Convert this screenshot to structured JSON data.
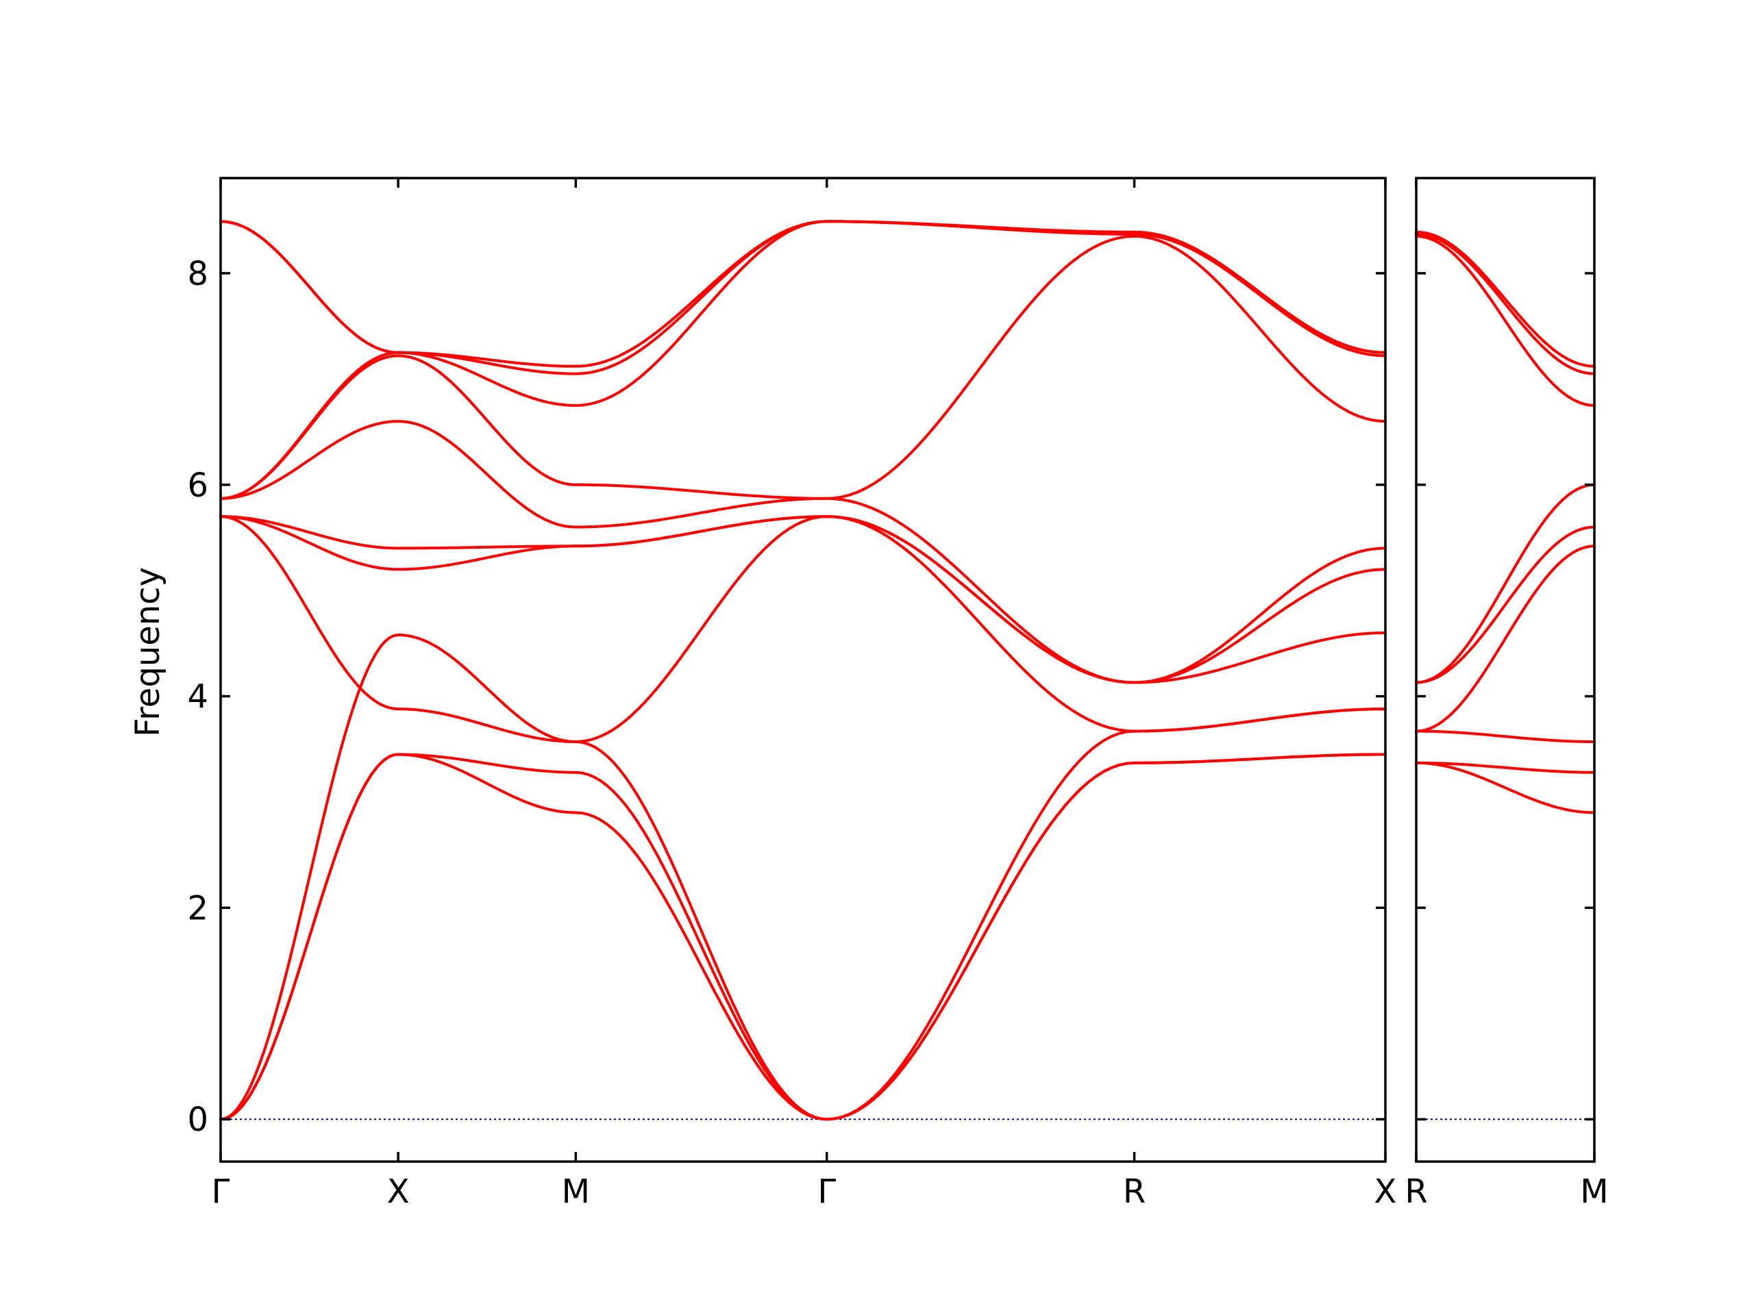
{
  "chart_data": {
    "type": "line",
    "ylabel": "Frequency",
    "ylim": [
      -0.4,
      8.9
    ],
    "yticks": [
      0,
      2,
      4,
      6,
      8
    ],
    "band_color": "#ff0000",
    "zero_line_color": "#0000aa",
    "panels": [
      {
        "name": "main",
        "path_labels": [
          "Γ",
          "X",
          "M",
          "Γ",
          "R",
          "X"
        ],
        "segment_lengths": [
          1,
          1,
          1.414,
          1.732,
          1.414
        ],
        "bands": [
          {
            "x": [
              0,
              1,
              2,
              3.414,
              5.146,
              6.56
            ],
            "y": [
              0,
              3.45,
              2.9,
              0,
              3.37,
              3.45
            ]
          },
          {
            "x": [
              0,
              1,
              2,
              3.414,
              5.146,
              6.56
            ],
            "y": [
              0,
              3.45,
              3.28,
              0,
              3.37,
              3.45
            ]
          },
          {
            "x": [
              0,
              1,
              2,
              3.414,
              5.146,
              6.56
            ],
            "y": [
              0,
              4.58,
              3.57,
              0,
              3.67,
              3.88
            ]
          },
          {
            "x": [
              0,
              1,
              2,
              3.414,
              5.146,
              6.56
            ],
            "y": [
              5.7,
              3.88,
              3.57,
              5.7,
              3.67,
              3.88
            ]
          },
          {
            "x": [
              0,
              1,
              2,
              3.414,
              5.146,
              6.56
            ],
            "y": [
              5.7,
              5.2,
              5.42,
              5.7,
              4.13,
              4.6
            ]
          },
          {
            "x": [
              0,
              1,
              2,
              3.414,
              5.146,
              6.56
            ],
            "y": [
              5.7,
              5.4,
              5.42,
              5.7,
              4.13,
              5.2
            ]
          },
          {
            "x": [
              0,
              1,
              2,
              3.414,
              5.146,
              6.56
            ],
            "y": [
              5.87,
              6.6,
              5.6,
              5.87,
              4.13,
              5.4
            ]
          },
          {
            "x": [
              0,
              1,
              2,
              3.414,
              5.146,
              6.56
            ],
            "y": [
              5.87,
              7.22,
              6.0,
              5.87,
              8.35,
              6.6
            ]
          },
          {
            "x": [
              0,
              1,
              2,
              3.414,
              5.146,
              6.56
            ],
            "y": [
              5.87,
              7.25,
              6.75,
              8.49,
              8.37,
              7.22
            ]
          },
          {
            "x": [
              0,
              1,
              2,
              3.414,
              5.146,
              6.56
            ],
            "y": [
              8.49,
              7.25,
              7.05,
              8.49,
              8.37,
              7.25
            ]
          },
          {
            "x": [
              0,
              1,
              2,
              3.414,
              5.146,
              6.56
            ],
            "y": [
              8.49,
              7.25,
              7.12,
              8.49,
              8.39,
              7.25
            ]
          }
        ]
      },
      {
        "name": "inset",
        "path_labels": [
          "R",
          "M"
        ],
        "segment_lengths": [
          1
        ],
        "bands": [
          {
            "x": [
              0,
              1
            ],
            "y": [
              3.37,
              2.9
            ]
          },
          {
            "x": [
              0,
              1
            ],
            "y": [
              3.37,
              3.28
            ]
          },
          {
            "x": [
              0,
              1
            ],
            "y": [
              3.67,
              3.57
            ]
          },
          {
            "x": [
              0,
              1
            ],
            "y": [
              3.67,
              5.42
            ]
          },
          {
            "x": [
              0,
              1
            ],
            "y": [
              4.13,
              5.6
            ]
          },
          {
            "x": [
              0,
              1
            ],
            "y": [
              4.13,
              6.0
            ]
          },
          {
            "x": [
              0,
              1
            ],
            "y": [
              8.35,
              6.75
            ]
          },
          {
            "x": [
              0,
              1
            ],
            "y": [
              8.37,
              7.05
            ]
          },
          {
            "x": [
              0,
              1
            ],
            "y": [
              8.39,
              7.12
            ]
          }
        ]
      }
    ]
  }
}
